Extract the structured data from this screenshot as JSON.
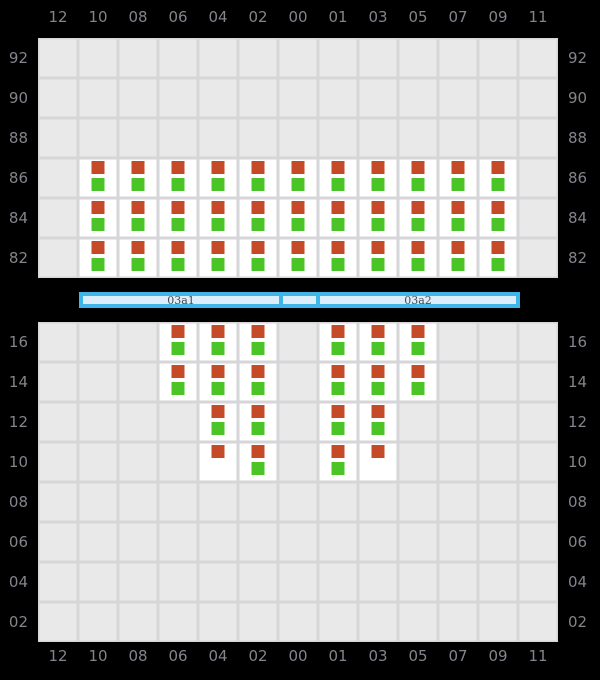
{
  "columns": [
    "12",
    "10",
    "08",
    "06",
    "04",
    "02",
    "00",
    "01",
    "03",
    "05",
    "07",
    "09",
    "11"
  ],
  "upper_panel": {
    "rows": [
      {
        "label": "92",
        "cells": [
          "",
          "",
          "",
          "",
          "",
          "",
          "",
          "",
          "",
          "",
          "",
          "",
          ""
        ]
      },
      {
        "label": "90",
        "cells": [
          "",
          "",
          "",
          "",
          "",
          "",
          "",
          "",
          "",
          "",
          "",
          "",
          ""
        ]
      },
      {
        "label": "88",
        "cells": [
          "",
          "",
          "",
          "",
          "",
          "",
          "",
          "",
          "",
          "",
          "",
          "",
          ""
        ]
      },
      {
        "label": "86",
        "cells": [
          "",
          "og",
          "og",
          "og",
          "og",
          "og",
          "og",
          "og",
          "og",
          "og",
          "og",
          "og",
          ""
        ]
      },
      {
        "label": "84",
        "cells": [
          "",
          "og",
          "og",
          "og",
          "og",
          "og",
          "og",
          "og",
          "og",
          "og",
          "og",
          "og",
          ""
        ]
      },
      {
        "label": "82",
        "cells": [
          "",
          "og",
          "og",
          "og",
          "og",
          "og",
          "og",
          "og",
          "og",
          "og",
          "og",
          "og",
          ""
        ]
      }
    ]
  },
  "lower_panel": {
    "rows": [
      {
        "label": "16",
        "cells": [
          "",
          "",
          "",
          "og",
          "og",
          "og",
          "",
          "og",
          "og",
          "og",
          "",
          "",
          ""
        ]
      },
      {
        "label": "14",
        "cells": [
          "",
          "",
          "",
          "og",
          "og",
          "og",
          "",
          "og",
          "og",
          "og",
          "",
          "",
          ""
        ]
      },
      {
        "label": "12",
        "cells": [
          "",
          "",
          "",
          "",
          "og",
          "og",
          "",
          "og",
          "og",
          "",
          "",
          "",
          ""
        ]
      },
      {
        "label": "10",
        "cells": [
          "",
          "",
          "",
          "",
          "o",
          "og",
          "",
          "og",
          "o",
          "",
          "",
          "",
          ""
        ]
      },
      {
        "label": "08",
        "cells": [
          "",
          "",
          "",
          "",
          "",
          "",
          "",
          "",
          "",
          "",
          "",
          "",
          ""
        ]
      },
      {
        "label": "06",
        "cells": [
          "",
          "",
          "",
          "",
          "",
          "",
          "",
          "",
          "",
          "",
          "",
          "",
          ""
        ]
      },
      {
        "label": "04",
        "cells": [
          "",
          "",
          "",
          "",
          "",
          "",
          "",
          "",
          "",
          "",
          "",
          "",
          ""
        ]
      },
      {
        "label": "02",
        "cells": [
          "",
          "",
          "",
          "",
          "",
          "",
          "",
          "",
          "",
          "",
          "",
          "",
          ""
        ]
      }
    ]
  },
  "range_bar": {
    "segments": [
      {
        "label": "03a1"
      },
      {
        "label": ""
      },
      {
        "label": "03a2"
      }
    ]
  },
  "legend": {
    "orange_marker": "orange-status-square",
    "green_marker": "green-status-square"
  },
  "colors": {
    "background": "#000000",
    "grid_cell": "#e9e9e9",
    "grid_line": "#d6d6d9",
    "occupied_cell": "#ffffff",
    "marker_orange": "#c54b28",
    "marker_green": "#4bc427",
    "label_text": "#84848c",
    "bar_border": "#3eb6ea",
    "bar_fill": "#dceefb",
    "bar_text": "#4a4a4a"
  }
}
